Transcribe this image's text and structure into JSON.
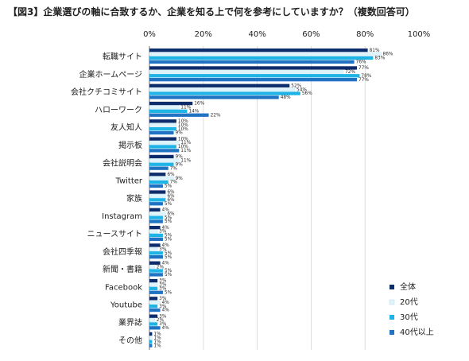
{
  "title": "【図3】企業選びの軸に合致するか、企業を知る上で何を参考にしていますか？（複数回答可）",
  "chart_data": {
    "type": "bar",
    "orientation": "horizontal",
    "xlim": [
      0,
      100
    ],
    "x_ticks": [
      "0%",
      "20%",
      "40%",
      "60%",
      "80%",
      "100%"
    ],
    "categories": [
      "転職サイト",
      "企業ホームページ",
      "会社クチコミサイト",
      "ハローワーク",
      "友人知人",
      "掲示板",
      "会社説明会",
      "Twitter",
      "家族",
      "Instagram",
      "ニュースサイト",
      "会社四季報",
      "新聞・書籍",
      "Facebook",
      "Youtube",
      "業界誌",
      "その他"
    ],
    "series": [
      {
        "name": "全体",
        "color": "#0d2c6c",
        "values": [
          81,
          77,
          52,
          16,
          10,
          10,
          9,
          6,
          6,
          4,
          4,
          4,
          4,
          3,
          3,
          3,
          1
        ]
      },
      {
        "name": "20代",
        "color": "#dff3fb",
        "values": [
          86,
          72,
          54,
          11,
          10,
          11,
          11,
          9,
          6,
          6,
          3,
          3,
          2,
          3,
          4,
          2,
          1
        ]
      },
      {
        "name": "30代",
        "color": "#1eb4e6",
        "values": [
          83,
          78,
          56,
          14,
          10,
          10,
          9,
          7,
          6,
          5,
          5,
          5,
          5,
          3,
          3,
          3,
          1
        ]
      },
      {
        "name": "40代以上",
        "color": "#1f73c2",
        "values": [
          76,
          77,
          48,
          22,
          9,
          11,
          7,
          5,
          5,
          5,
          5,
          5,
          5,
          5,
          4,
          4,
          1
        ]
      }
    ],
    "data_labels": "percent",
    "legend_position": "bottom-right",
    "grid": true
  }
}
